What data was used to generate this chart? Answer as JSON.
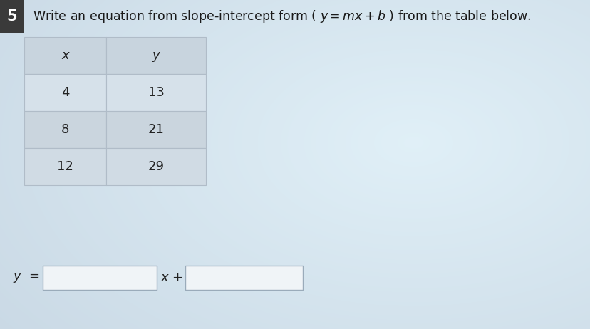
{
  "title_number": "5",
  "title_number_bg": "#3a3a3a",
  "title_number_color": "#ffffff",
  "table_headers": [
    "x",
    "y"
  ],
  "table_data": [
    [
      "4",
      "13"
    ],
    [
      "8",
      "21"
    ],
    [
      "12",
      "29"
    ]
  ],
  "header_bg": "#c8d4de",
  "row_bg_light": "#d4dfe8",
  "row_bg_medium": "#c8d3dd",
  "table_border_color": "#b0bcc8",
  "input_box_color": "#f0f4f7",
  "input_box_border": "#9aabba",
  "background_color_center": "#dce8f0",
  "background_color_edge": "#b8c8d4",
  "font_size_instruction": 12.5,
  "font_size_table": 13,
  "font_size_equation": 13
}
